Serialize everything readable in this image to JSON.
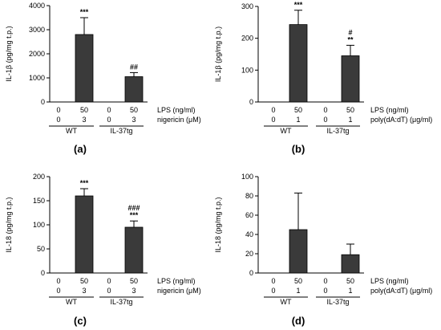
{
  "colors": {
    "bar": "#3a3a3a",
    "axis": "#000000"
  },
  "labels": {
    "a": "(a)",
    "b": "(b)",
    "c": "(c)",
    "d": "(d)",
    "zero": "0",
    "fifty": "50",
    "three": "3",
    "one": "1",
    "wt": "WT",
    "il37tg": "IL-37tg",
    "lps": "LPS (ng/ml)",
    "nigericin": "nigericin (μM)",
    "polyda": "poly(dA:dT) (μg/ml)"
  },
  "chart_data": [
    {
      "type": "bar",
      "panel": "(a)",
      "ylabel": "IL-1β (pg/mg t.p.)",
      "ylim": [
        0,
        4000
      ],
      "yticks": [
        "0",
        "1000",
        "2000",
        "3000",
        "4000"
      ],
      "ytick_values": [
        0,
        1000,
        2000,
        3000,
        4000
      ],
      "condition_rows": [
        {
          "label": "LPS (ng/ml)",
          "values": [
            "0",
            "50",
            "0",
            "50"
          ]
        },
        {
          "label": "nigericin (μM)",
          "values": [
            "0",
            "3",
            "0",
            "3"
          ]
        }
      ],
      "groups": [
        "WT",
        "IL-37tg"
      ],
      "values": [
        0,
        2800,
        0,
        1050
      ],
      "errors": [
        0,
        700,
        0,
        170
      ],
      "annotations": [
        {
          "bar": 1,
          "lines": [
            "***"
          ]
        },
        {
          "bar": 3,
          "lines": [
            "##"
          ]
        }
      ]
    },
    {
      "type": "bar",
      "panel": "(b)",
      "ylabel": "IL-1β (pg/mg t.p.)",
      "ylim": [
        0,
        300
      ],
      "yticks": [
        "0",
        "100",
        "200",
        "300"
      ],
      "ytick_values": [
        0,
        100,
        200,
        300
      ],
      "condition_rows": [
        {
          "label": "LPS (ng/ml)",
          "values": [
            "0",
            "50",
            "0",
            "50"
          ]
        },
        {
          "label": "poly(dA:dT) (μg/ml)",
          "values": [
            "0",
            "1",
            "0",
            "1"
          ]
        }
      ],
      "groups": [
        "WT",
        "IL-37tg"
      ],
      "values": [
        0,
        243,
        0,
        145
      ],
      "errors": [
        0,
        45,
        0,
        33
      ],
      "annotations": [
        {
          "bar": 1,
          "lines": [
            "***"
          ]
        },
        {
          "bar": 3,
          "lines": [
            "#",
            "**"
          ]
        }
      ]
    },
    {
      "type": "bar",
      "panel": "(c)",
      "ylabel": "IL-18 (pg/mg t.p.)",
      "ylim": [
        0,
        200
      ],
      "yticks": [
        "0",
        "50",
        "100",
        "150",
        "200"
      ],
      "ytick_values": [
        0,
        50,
        100,
        150,
        200
      ],
      "condition_rows": [
        {
          "label": "LPS (ng/ml)",
          "values": [
            "0",
            "50",
            "0",
            "50"
          ]
        },
        {
          "label": "nigericin (μM)",
          "values": [
            "0",
            "3",
            "0",
            "3"
          ]
        }
      ],
      "groups": [
        "WT",
        "IL-37tg"
      ],
      "values": [
        0,
        160,
        0,
        95
      ],
      "errors": [
        0,
        15,
        0,
        13
      ],
      "annotations": [
        {
          "bar": 1,
          "lines": [
            "***"
          ]
        },
        {
          "bar": 3,
          "lines": [
            "###",
            "***"
          ]
        }
      ]
    },
    {
      "type": "bar",
      "panel": "(d)",
      "ylabel": "IL-18 (pg/mg t.p.)",
      "ylim": [
        0,
        100
      ],
      "yticks": [
        "0",
        "20",
        "40",
        "60",
        "80",
        "100"
      ],
      "ytick_values": [
        0,
        20,
        40,
        60,
        80,
        100
      ],
      "condition_rows": [
        {
          "label": "LPS (ng/ml)",
          "values": [
            "0",
            "50",
            "0",
            "50"
          ]
        },
        {
          "label": "poly(dA:dT) (μg/ml)",
          "values": [
            "0",
            "1",
            "0",
            "1"
          ]
        }
      ],
      "groups": [
        "WT",
        "IL-37tg"
      ],
      "values": [
        0,
        45,
        0,
        19
      ],
      "errors": [
        0,
        38,
        0,
        11
      ],
      "annotations": []
    }
  ]
}
